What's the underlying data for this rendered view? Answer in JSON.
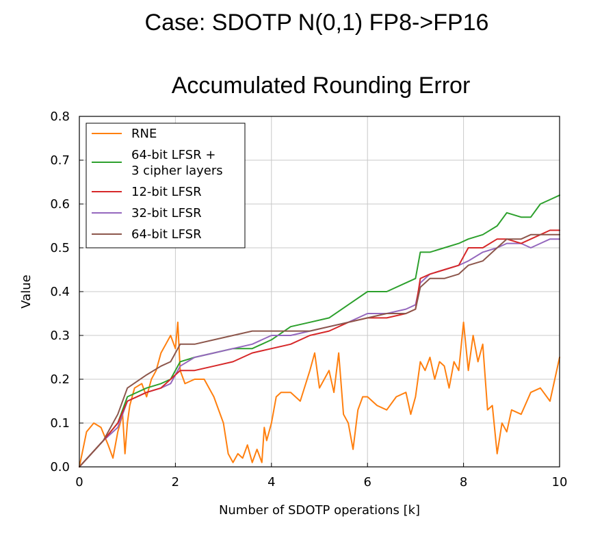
{
  "case_title": "Case: SDOTP N(0,1) FP8->FP16",
  "chart_data": {
    "type": "line",
    "title": "Accumulated Rounding Error",
    "xlabel": "Number of SDOTP operations [k]",
    "ylabel": "Value",
    "xlim": [
      0,
      10
    ],
    "ylim": [
      0,
      0.8
    ],
    "xticks": [
      0,
      2,
      4,
      6,
      8,
      10
    ],
    "xtick_labels": [
      "0",
      "2",
      "4",
      "6",
      "8",
      "10"
    ],
    "yticks": [
      0,
      0.1,
      0.2,
      0.3,
      0.4,
      0.5,
      0.6,
      0.7,
      0.8
    ],
    "ytick_labels": [
      "0.0",
      "0.1",
      "0.2",
      "0.3",
      "0.4",
      "0.5",
      "0.6",
      "0.7",
      "0.8"
    ],
    "grid": true,
    "legend_position": "top-left",
    "series": [
      {
        "name": "RNE",
        "color": "#ff7f0e",
        "x": [
          0,
          0.15,
          0.3,
          0.45,
          0.6,
          0.7,
          0.8,
          0.9,
          0.95,
          1.0,
          1.05,
          1.15,
          1.3,
          1.4,
          1.5,
          1.6,
          1.7,
          1.8,
          1.9,
          2.0,
          2.05,
          2.1,
          2.2,
          2.4,
          2.6,
          2.8,
          3.0,
          3.1,
          3.2,
          3.3,
          3.4,
          3.5,
          3.6,
          3.7,
          3.8,
          3.85,
          3.9,
          4.0,
          4.1,
          4.2,
          4.4,
          4.6,
          4.8,
          4.9,
          5.0,
          5.1,
          5.2,
          5.3,
          5.4,
          5.5,
          5.6,
          5.7,
          5.8,
          5.9,
          6.0,
          6.2,
          6.4,
          6.6,
          6.8,
          6.9,
          7.0,
          7.1,
          7.2,
          7.3,
          7.4,
          7.5,
          7.6,
          7.7,
          7.8,
          7.9,
          8.0,
          8.1,
          8.2,
          8.3,
          8.4,
          8.5,
          8.6,
          8.7,
          8.8,
          8.9,
          9.0,
          9.2,
          9.4,
          9.6,
          9.8,
          9.9,
          10.0
        ],
        "y": [
          0.0,
          0.08,
          0.1,
          0.09,
          0.05,
          0.02,
          0.08,
          0.12,
          0.03,
          0.1,
          0.14,
          0.18,
          0.19,
          0.16,
          0.2,
          0.22,
          0.26,
          0.28,
          0.3,
          0.27,
          0.33,
          0.22,
          0.19,
          0.2,
          0.2,
          0.16,
          0.1,
          0.03,
          0.01,
          0.03,
          0.02,
          0.05,
          0.01,
          0.04,
          0.01,
          0.09,
          0.06,
          0.1,
          0.16,
          0.17,
          0.17,
          0.15,
          0.22,
          0.26,
          0.18,
          0.2,
          0.22,
          0.17,
          0.26,
          0.12,
          0.1,
          0.04,
          0.13,
          0.16,
          0.16,
          0.14,
          0.13,
          0.16,
          0.17,
          0.12,
          0.16,
          0.24,
          0.22,
          0.25,
          0.2,
          0.24,
          0.23,
          0.18,
          0.24,
          0.22,
          0.33,
          0.22,
          0.3,
          0.24,
          0.28,
          0.13,
          0.14,
          0.03,
          0.1,
          0.08,
          0.13,
          0.12,
          0.17,
          0.18,
          0.15,
          0.2,
          0.25
        ]
      },
      {
        "name": "64-bit LFSR + 3 cipher layers",
        "color": "#2ca02c",
        "x": [
          0,
          0.5,
          0.8,
          1.0,
          1.4,
          1.7,
          1.9,
          2.1,
          2.4,
          2.8,
          3.2,
          3.6,
          4.0,
          4.4,
          4.8,
          5.2,
          5.6,
          6.0,
          6.4,
          6.8,
          7.0,
          7.1,
          7.3,
          7.6,
          7.9,
          8.1,
          8.4,
          8.7,
          8.9,
          9.2,
          9.4,
          9.6,
          9.8,
          10.0
        ],
        "y": [
          0,
          0.06,
          0.1,
          0.16,
          0.18,
          0.19,
          0.2,
          0.24,
          0.25,
          0.26,
          0.27,
          0.27,
          0.29,
          0.32,
          0.33,
          0.34,
          0.37,
          0.4,
          0.4,
          0.42,
          0.43,
          0.49,
          0.49,
          0.5,
          0.51,
          0.52,
          0.53,
          0.55,
          0.58,
          0.57,
          0.57,
          0.6,
          0.61,
          0.62
        ]
      },
      {
        "name": "12-bit LFSR",
        "color": "#d62728",
        "x": [
          0,
          0.5,
          0.8,
          1.0,
          1.4,
          1.7,
          1.9,
          2.1,
          2.4,
          2.8,
          3.2,
          3.6,
          4.0,
          4.4,
          4.8,
          5.2,
          5.6,
          6.0,
          6.4,
          6.8,
          7.0,
          7.1,
          7.3,
          7.6,
          7.9,
          8.1,
          8.4,
          8.7,
          8.9,
          9.2,
          9.4,
          9.6,
          9.8,
          10.0
        ],
        "y": [
          0,
          0.06,
          0.1,
          0.15,
          0.17,
          0.18,
          0.2,
          0.22,
          0.22,
          0.23,
          0.24,
          0.26,
          0.27,
          0.28,
          0.3,
          0.31,
          0.33,
          0.34,
          0.34,
          0.35,
          0.36,
          0.43,
          0.44,
          0.45,
          0.46,
          0.5,
          0.5,
          0.52,
          0.52,
          0.51,
          0.52,
          0.53,
          0.54,
          0.54
        ]
      },
      {
        "name": "32-bit LFSR",
        "color": "#9467bd",
        "x": [
          0,
          0.5,
          0.8,
          1.0,
          1.4,
          1.7,
          1.9,
          2.1,
          2.4,
          2.8,
          3.2,
          3.6,
          4.0,
          4.4,
          4.8,
          5.2,
          5.6,
          6.0,
          6.4,
          6.8,
          7.0,
          7.1,
          7.3,
          7.6,
          7.9,
          8.1,
          8.4,
          8.7,
          8.9,
          9.2,
          9.4,
          9.6,
          9.8,
          10.0
        ],
        "y": [
          0,
          0.06,
          0.09,
          0.15,
          0.17,
          0.18,
          0.19,
          0.23,
          0.25,
          0.26,
          0.27,
          0.28,
          0.3,
          0.3,
          0.31,
          0.32,
          0.33,
          0.35,
          0.35,
          0.36,
          0.37,
          0.42,
          0.44,
          0.45,
          0.46,
          0.47,
          0.49,
          0.5,
          0.51,
          0.51,
          0.5,
          0.51,
          0.52,
          0.52
        ]
      },
      {
        "name": "64-bit LFSR",
        "color": "#8c564b",
        "x": [
          0,
          0.5,
          0.8,
          1.0,
          1.4,
          1.7,
          1.9,
          2.1,
          2.4,
          2.8,
          3.2,
          3.6,
          4.0,
          4.4,
          4.8,
          5.2,
          5.6,
          6.0,
          6.4,
          6.8,
          7.0,
          7.1,
          7.3,
          7.6,
          7.9,
          8.1,
          8.4,
          8.7,
          8.9,
          9.2,
          9.4,
          9.6,
          9.8,
          10.0
        ],
        "y": [
          0,
          0.06,
          0.12,
          0.18,
          0.21,
          0.23,
          0.24,
          0.28,
          0.28,
          0.29,
          0.3,
          0.31,
          0.31,
          0.31,
          0.31,
          0.32,
          0.33,
          0.34,
          0.35,
          0.35,
          0.36,
          0.41,
          0.43,
          0.43,
          0.44,
          0.46,
          0.47,
          0.5,
          0.52,
          0.52,
          0.53,
          0.53,
          0.53,
          0.53
        ]
      }
    ]
  }
}
